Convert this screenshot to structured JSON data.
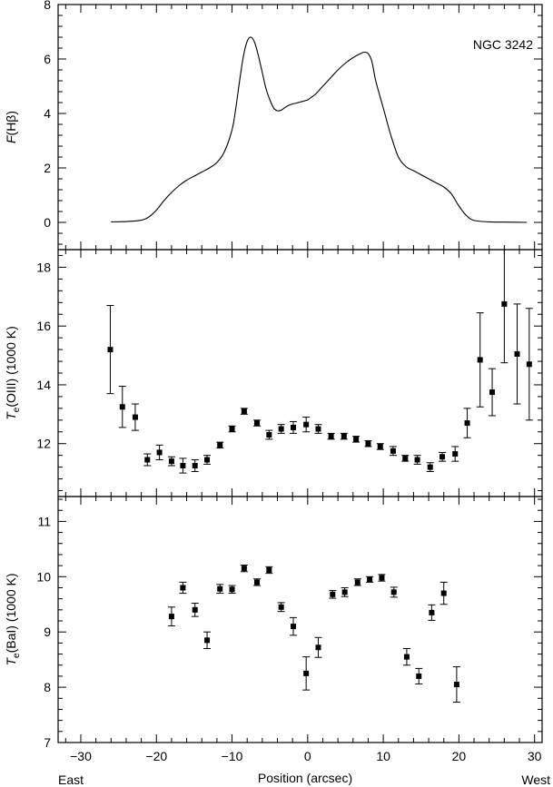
{
  "chart_data": [
    {
      "type": "line",
      "panel": "top",
      "ylabel_main": "F",
      "ylabel_rest": "(Hβ)",
      "annotation": "NGC 3242",
      "xlim": [
        -33,
        31
      ],
      "ylim": [
        -1,
        8
      ],
      "yticks": [
        0,
        2,
        4,
        6,
        8
      ],
      "series": [
        {
          "x": [
            -26,
            -24,
            -22,
            -21,
            -20,
            -19,
            -18,
            -17,
            -16,
            -15,
            -14,
            -13,
            -12,
            -11,
            -10,
            -9.5,
            -9,
            -8.5,
            -8,
            -7.5,
            -7,
            -6.5,
            -6,
            -5.5,
            -5,
            -4.5,
            -4,
            -3.5,
            -3,
            -2.5,
            -2,
            -1.5,
            -1,
            0,
            0.5,
            1,
            2,
            3,
            4,
            5,
            6,
            7,
            7.5,
            8,
            8.5,
            9,
            10,
            11,
            12,
            13,
            14,
            15,
            16,
            17,
            18,
            19,
            20,
            21,
            22,
            24,
            26,
            29
          ],
          "y": [
            0.02,
            0.03,
            0.08,
            0.2,
            0.45,
            0.8,
            1.1,
            1.35,
            1.55,
            1.7,
            1.85,
            2.0,
            2.2,
            2.6,
            3.4,
            4.2,
            5.2,
            6.1,
            6.65,
            6.8,
            6.6,
            6.1,
            5.5,
            4.9,
            4.5,
            4.2,
            4.1,
            4.12,
            4.22,
            4.3,
            4.35,
            4.38,
            4.42,
            4.5,
            4.6,
            4.7,
            5.0,
            5.3,
            5.6,
            5.85,
            6.05,
            6.2,
            6.25,
            6.2,
            5.9,
            5.2,
            4.2,
            3.2,
            2.4,
            2.05,
            1.9,
            1.75,
            1.6,
            1.45,
            1.3,
            1.05,
            0.6,
            0.25,
            0.07,
            0.02,
            0.01,
            0.0
          ]
        }
      ]
    },
    {
      "type": "scatter",
      "panel": "middle",
      "ylabel_main": "T",
      "ylabel_sub": "e",
      "ylabel_rest": "(OIII) (1000 K)",
      "xlim": [
        -33,
        31
      ],
      "ylim": [
        10.2,
        18.6
      ],
      "yticks": [
        12,
        14,
        16,
        18
      ],
      "series": [
        {
          "x": [
            -26.1,
            -24.5,
            -22.8,
            -21.2,
            -19.6,
            -18.0,
            -16.5,
            -14.9,
            -13.3,
            -11.6,
            -10.0,
            -8.4,
            -6.7,
            -5.1,
            -3.5,
            -1.9,
            -0.2,
            1.4,
            3.1,
            4.8,
            6.4,
            8.0,
            9.6,
            11.3,
            12.9,
            14.5,
            16.2,
            17.8,
            19.5,
            21.1,
            22.8,
            24.4,
            26.0,
            27.7,
            29.3
          ],
          "y": [
            15.2,
            13.25,
            12.9,
            11.45,
            11.7,
            11.4,
            11.25,
            11.25,
            11.45,
            11.95,
            12.5,
            13.1,
            12.7,
            12.3,
            12.5,
            12.55,
            12.65,
            12.5,
            12.25,
            12.25,
            12.15,
            12.0,
            11.9,
            11.75,
            11.5,
            11.45,
            11.2,
            11.55,
            11.65,
            12.7,
            14.85,
            13.75,
            16.75,
            15.05,
            14.7
          ],
          "err": [
            1.5,
            0.7,
            0.45,
            0.2,
            0.25,
            0.15,
            0.25,
            0.2,
            0.15,
            0.1,
            0.1,
            0.1,
            0.1,
            0.15,
            0.15,
            0.2,
            0.25,
            0.15,
            0.1,
            0.1,
            0.1,
            0.1,
            0.1,
            0.15,
            0.1,
            0.15,
            0.15,
            0.15,
            0.25,
            0.5,
            1.6,
            0.8,
            2.0,
            1.7,
            1.9
          ]
        }
      ]
    },
    {
      "type": "scatter",
      "panel": "bottom",
      "ylabel_main": "T",
      "ylabel_sub": "e",
      "ylabel_rest": "(BaI) (1000 K)",
      "xlim": [
        -33,
        31
      ],
      "ylim": [
        7,
        11.45
      ],
      "yticks": [
        7,
        8,
        9,
        10,
        11
      ],
      "xticks": [
        -30,
        -20,
        -10,
        0,
        10,
        20,
        30
      ],
      "xlabel": "Position (arcsec)",
      "x_end_left": "East",
      "x_end_right": "West",
      "series": [
        {
          "x": [
            -18.0,
            -16.5,
            -14.9,
            -13.3,
            -11.6,
            -10.0,
            -8.4,
            -6.7,
            -5.1,
            -3.5,
            -1.9,
            -0.2,
            1.4,
            3.3,
            4.9,
            6.6,
            8.2,
            9.8,
            11.4,
            13.1,
            14.7,
            16.4,
            18.0,
            19.7
          ],
          "y": [
            9.28,
            9.8,
            9.4,
            8.85,
            9.78,
            9.77,
            10.15,
            9.9,
            10.12,
            9.45,
            9.1,
            8.25,
            8.72,
            9.68,
            9.72,
            9.9,
            9.95,
            9.98,
            9.72,
            8.55,
            8.2,
            9.35,
            9.7,
            8.05
          ]
        }
      ],
      "err": [
        0.17,
        0.1,
        0.12,
        0.15,
        0.08,
        0.07,
        0.06,
        0.06,
        0.06,
        0.08,
        0.16,
        0.3,
        0.18,
        0.07,
        0.08,
        0.06,
        0.05,
        0.06,
        0.09,
        0.15,
        0.14,
        0.14,
        0.2,
        0.32
      ]
    }
  ]
}
